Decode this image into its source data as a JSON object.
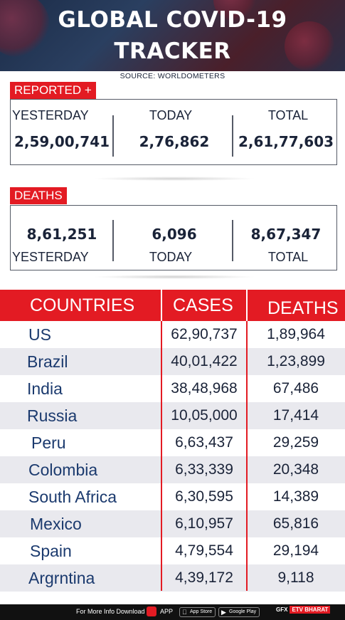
{
  "header": {
    "title_line1": "GLOBAL COVID-19",
    "title_line2": "TRACKER",
    "source": "SOURCE: WORLDOMETERS"
  },
  "reported": {
    "tag": "REPORTED +",
    "labels": {
      "yesterday": "YESTERDAY",
      "today": "TODAY",
      "total": "TOTAL"
    },
    "values": {
      "yesterday": "2,59,00,741",
      "today": "2,76,862",
      "total": "2,61,77,603"
    }
  },
  "deaths_summary": {
    "tag": "DEATHS",
    "labels": {
      "yesterday": "YESTERDAY",
      "today": "TODAY",
      "total": "TOTAL"
    },
    "values": {
      "yesterday": "8,61,251",
      "today": "6,096",
      "total": "8,67,347"
    }
  },
  "table": {
    "headers": {
      "countries": "COUNTRIES",
      "cases": "CASES",
      "deaths": "DEATHS"
    },
    "rows": [
      {
        "country": "US",
        "cases": "62,90,737",
        "deaths": "1,89,964"
      },
      {
        "country": "Brazil",
        "cases": "40,01,422",
        "deaths": "1,23,899"
      },
      {
        "country": "India",
        "cases": "38,48,968",
        "deaths": "67,486"
      },
      {
        "country": "Russia",
        "cases": "10,05,000",
        "deaths": "17,414"
      },
      {
        "country": "Peru",
        "cases": "6,63,437",
        "deaths": "29,259"
      },
      {
        "country": "Colombia",
        "cases": "6,33,339",
        "deaths": "20,348"
      },
      {
        "country": "South Africa",
        "cases": "6,30,595",
        "deaths": "14,389"
      },
      {
        "country": "Mexico",
        "cases": "6,10,957",
        "deaths": "65,816"
      },
      {
        "country": "Spain",
        "cases": "4,79,554",
        "deaths": "29,194"
      },
      {
        "country": "Argrntina",
        "cases": "4,39,172",
        "deaths": "9,118"
      }
    ]
  },
  "footer": {
    "info_text": "For More Info Download",
    "app_label": "APP",
    "app_store": "App Store",
    "google_play": "Google Play",
    "gfx": "GFX",
    "brand": "ETV BHARAT"
  },
  "colors": {
    "accent_red": "#e31b23",
    "navy_text": "#1a2338",
    "country_blue": "#1b3a6e",
    "row_alt": "#e9e9ee"
  }
}
